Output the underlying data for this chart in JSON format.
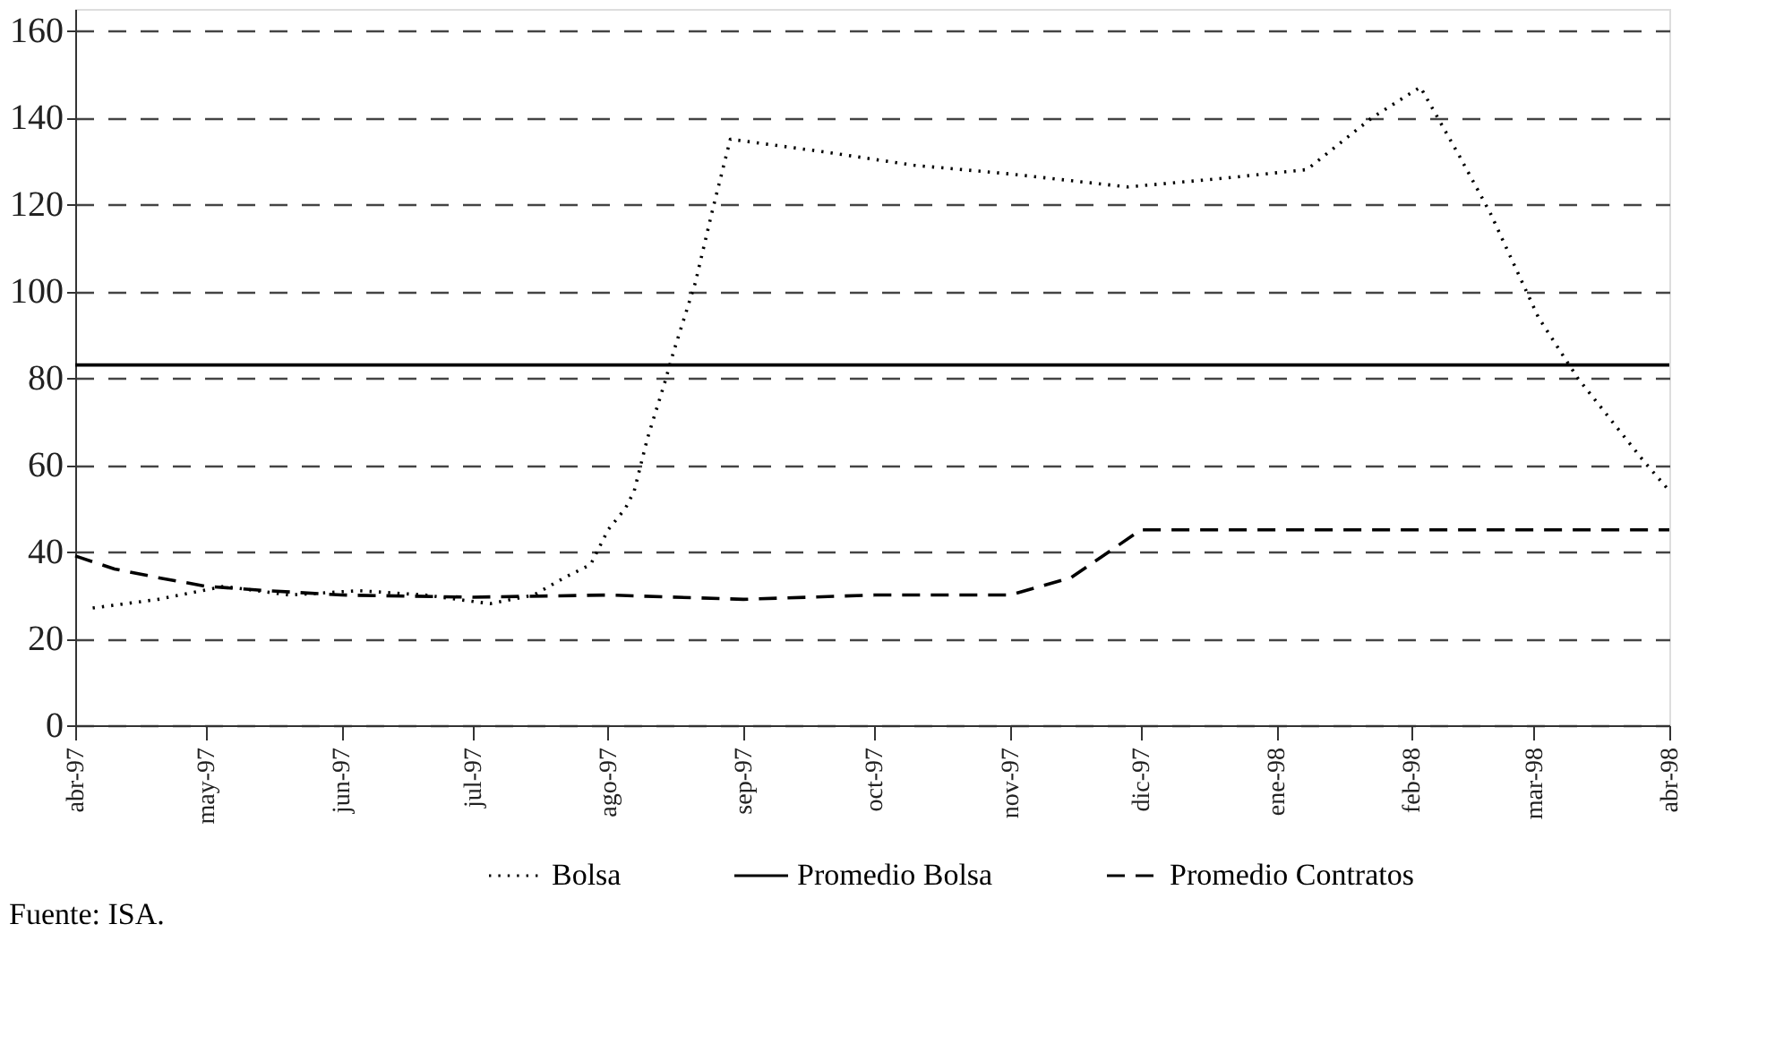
{
  "chart_data": {
    "type": "line",
    "ylim": [
      0,
      165
    ],
    "yticks": [
      0,
      20,
      40,
      60,
      80,
      100,
      120,
      140,
      160
    ],
    "xlim": [
      "1997-04-01",
      "1998-04-01"
    ],
    "xticks": [
      {
        "value": "1997-04-01",
        "label": "abr-97"
      },
      {
        "value": "1997-05-01",
        "label": "may-97"
      },
      {
        "value": "1997-06-01",
        "label": "jun-97"
      },
      {
        "value": "1997-07-01",
        "label": "jul-97"
      },
      {
        "value": "1997-08-01",
        "label": "ago-97"
      },
      {
        "value": "1997-09-01",
        "label": "sep-97"
      },
      {
        "value": "1997-10-01",
        "label": "oct-97"
      },
      {
        "value": "1997-11-01",
        "label": "nov-97"
      },
      {
        "value": "1997-12-01",
        "label": "dic-97"
      },
      {
        "value": "1998-01-01",
        "label": "ene-98"
      },
      {
        "value": "1998-02-01",
        "label": "feb-98"
      },
      {
        "value": "1998-03-01",
        "label": "mar-98"
      },
      {
        "value": "1998-04-01",
        "label": "abr-98"
      }
    ],
    "grid": "y",
    "legend": "bottom",
    "annotations": [
      "Fuente: ISA."
    ],
    "series": [
      {
        "name": "Bolsa",
        "color": "#000000",
        "line_style": "dotted",
        "x": [
          "1997-04-05",
          "1997-04-20",
          "1997-05-05",
          "1997-05-20",
          "1997-06-05",
          "1997-06-20",
          "1997-07-05",
          "1997-07-15",
          "1997-07-22",
          "1997-07-28",
          "1997-08-01",
          "1997-08-05",
          "1997-08-07",
          "1997-08-10",
          "1997-08-14",
          "1997-08-16",
          "1997-08-21",
          "1997-08-25",
          "1997-08-29",
          "1997-09-20",
          "1997-10-10",
          "1997-11-01",
          "1997-11-28",
          "1997-12-20",
          "1998-01-08",
          "1998-01-23",
          "1998-02-03",
          "1998-02-12",
          "1998-02-19",
          "1998-03-02",
          "1998-03-11",
          "1998-03-26",
          "1998-04-01"
        ],
        "values": [
          27,
          29,
          32,
          30,
          31,
          30,
          28,
          30,
          34,
          37,
          45,
          50,
          54,
          66,
          79,
          86,
          102,
          119,
          135,
          132,
          129,
          127,
          124,
          126,
          128,
          140,
          147,
          131,
          118,
          94,
          80,
          61,
          54
        ]
      },
      {
        "name": "Promedio Bolsa",
        "color": "#000000",
        "line_style": "solid",
        "x": [
          "1997-04-01",
          "1998-04-01"
        ],
        "values": [
          83,
          83
        ]
      },
      {
        "name": "Promedio Contratos",
        "color": "#000000",
        "line_style": "dashed",
        "x": [
          "1997-04-01",
          "1997-04-10",
          "1997-04-20",
          "1997-05-01",
          "1997-05-15",
          "1997-06-01",
          "1997-07-01",
          "1997-08-01",
          "1997-09-01",
          "1997-10-01",
          "1997-11-01",
          "1997-11-15",
          "1997-12-01",
          "1998-01-01",
          "1998-02-01",
          "1998-03-01",
          "1998-04-01"
        ],
        "values": [
          39,
          36,
          34,
          32,
          31,
          30,
          29.5,
          30,
          29,
          30,
          30,
          34,
          45,
          45,
          45,
          45,
          45
        ]
      }
    ]
  }
}
